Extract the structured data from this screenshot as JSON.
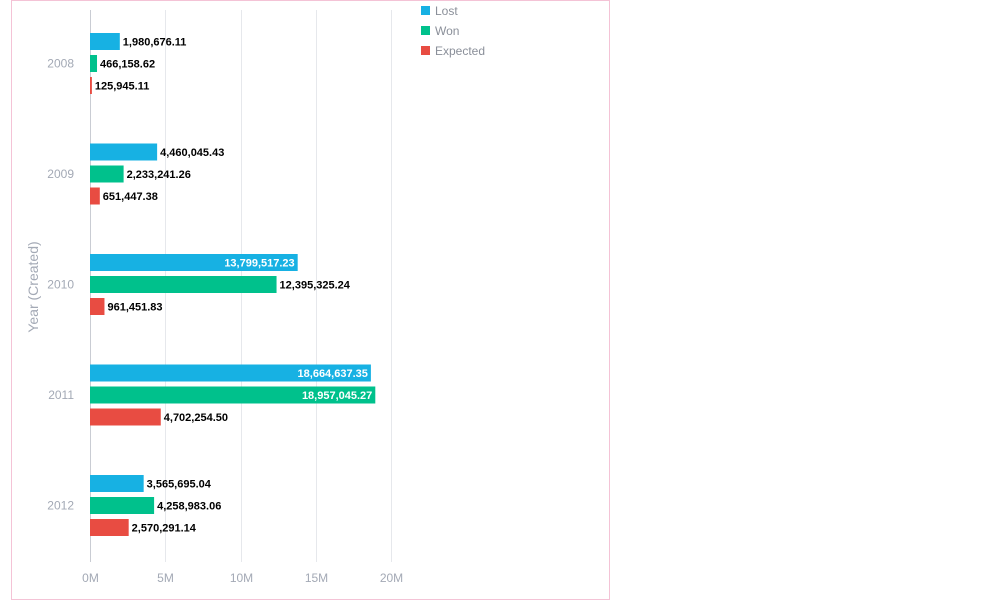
{
  "chart_data": {
    "type": "bar",
    "orientation": "horizontal",
    "categories": [
      "2008",
      "2009",
      "2010",
      "2011",
      "2012"
    ],
    "series": [
      {
        "name": "Lost",
        "color": "#17b1e3",
        "values": [
          1980676.11,
          4460045.43,
          13799517.23,
          18664637.35,
          3565695.04
        ],
        "labels": [
          "1,980,676.11",
          "4,460,045.43",
          "13,799,517.23",
          "18,664,637.35",
          "3,565,695.04"
        ]
      },
      {
        "name": "Won",
        "color": "#00c18c",
        "values": [
          466158.62,
          2233241.26,
          12395325.24,
          18957045.27,
          4258983.06
        ],
        "labels": [
          "466,158.62",
          "2,233,241.26",
          "12,395,325.24",
          "18,957,045.27",
          "4,258,983.06"
        ]
      },
      {
        "name": "Expected",
        "color": "#e84c42",
        "values": [
          125945.11,
          651447.38,
          961451.83,
          4702254.5,
          2570291.14
        ],
        "labels": [
          "125,945.11",
          "651,447.38",
          "961,451.83",
          "4,702,254.50",
          "2,570,291.14"
        ]
      }
    ],
    "ylabel": "Year (Created)",
    "xlabel": "",
    "xlim": [
      0,
      20000000
    ],
    "x_ticks": [
      0,
      5000000,
      10000000,
      15000000,
      20000000
    ],
    "x_tick_labels": [
      "0M",
      "5M",
      "10M",
      "15M",
      "20M"
    ],
    "grid": true,
    "legend_position": "top-right"
  }
}
